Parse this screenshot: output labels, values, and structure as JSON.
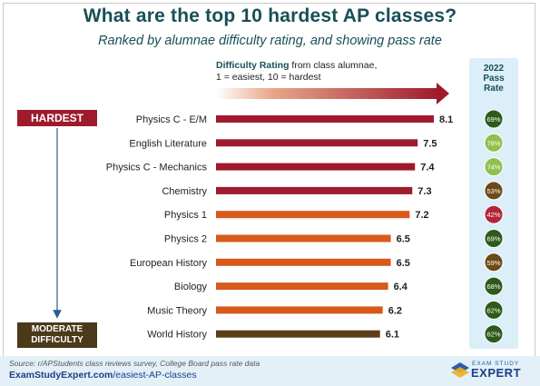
{
  "title": "What are the top 10 hardest AP classes?",
  "subtitle": "Ranked by alumnae difficulty rating, and showing pass rate",
  "difficulty_header": {
    "bold": "Difficulty Rating",
    "rest": " from class alumnae,",
    "line2": "1 = easiest, 10 = hardest"
  },
  "pass_rate_header": [
    "2022",
    "Pass",
    "Rate"
  ],
  "hardest_label": "HARDEST",
  "moderate_label": [
    "MODERATE",
    "DIFFICULTY"
  ],
  "source": "Source: r/APStudents class reviews survey, College Board pass rate data",
  "site": {
    "bold": "ExamStudyExpert.com",
    "rest": "/easiest-AP-classes"
  },
  "logo": {
    "top": "EXAM STUDY",
    "main": "EXPERT"
  },
  "colors": {
    "bar_dark": "#9e1b2e",
    "bar_orange": "#d75a1c",
    "bar_brown": "#5b3e18",
    "pass_green": "#2d5a1a",
    "pass_light": "#8fc04b",
    "pass_brown": "#6b4a18",
    "pass_red": "#b4243a",
    "arrow": "#9e1b2e"
  },
  "chart_data": {
    "type": "bar",
    "orientation": "horizontal",
    "categories": [
      "Physics C - E/M",
      "English Literature",
      "Physics C - Mechanics",
      "Chemistry",
      "Physics 1",
      "Physics 2",
      "European History",
      "Biology",
      "Music Theory",
      "World History"
    ],
    "values": [
      8.1,
      7.5,
      7.4,
      7.3,
      7.2,
      6.5,
      6.5,
      6.4,
      6.2,
      6.1
    ],
    "value_labels": [
      "8.1",
      "7.5",
      "7.4",
      "7.3",
      "7.2",
      "6.5",
      "6.5",
      "6.4",
      "6.2",
      "6.1"
    ],
    "bar_colors": [
      "#9e1b2e",
      "#9e1b2e",
      "#9e1b2e",
      "#9e1b2e",
      "#d75a1c",
      "#d75a1c",
      "#d75a1c",
      "#d75a1c",
      "#d75a1c",
      "#5b3e18"
    ],
    "pass_rate": [
      "69%",
      "78%",
      "74%",
      "53%",
      "42%",
      "69%",
      "59%",
      "68%",
      "62%",
      "62%"
    ],
    "pass_rate_colors": [
      "#2d5a1a",
      "#8fc04b",
      "#8fc04b",
      "#6b4a18",
      "#b4243a",
      "#2d5a1a",
      "#6b4a18",
      "#2d5a1a",
      "#2d5a1a",
      "#2d5a1a"
    ],
    "grid": false,
    "legend": "none"
  }
}
